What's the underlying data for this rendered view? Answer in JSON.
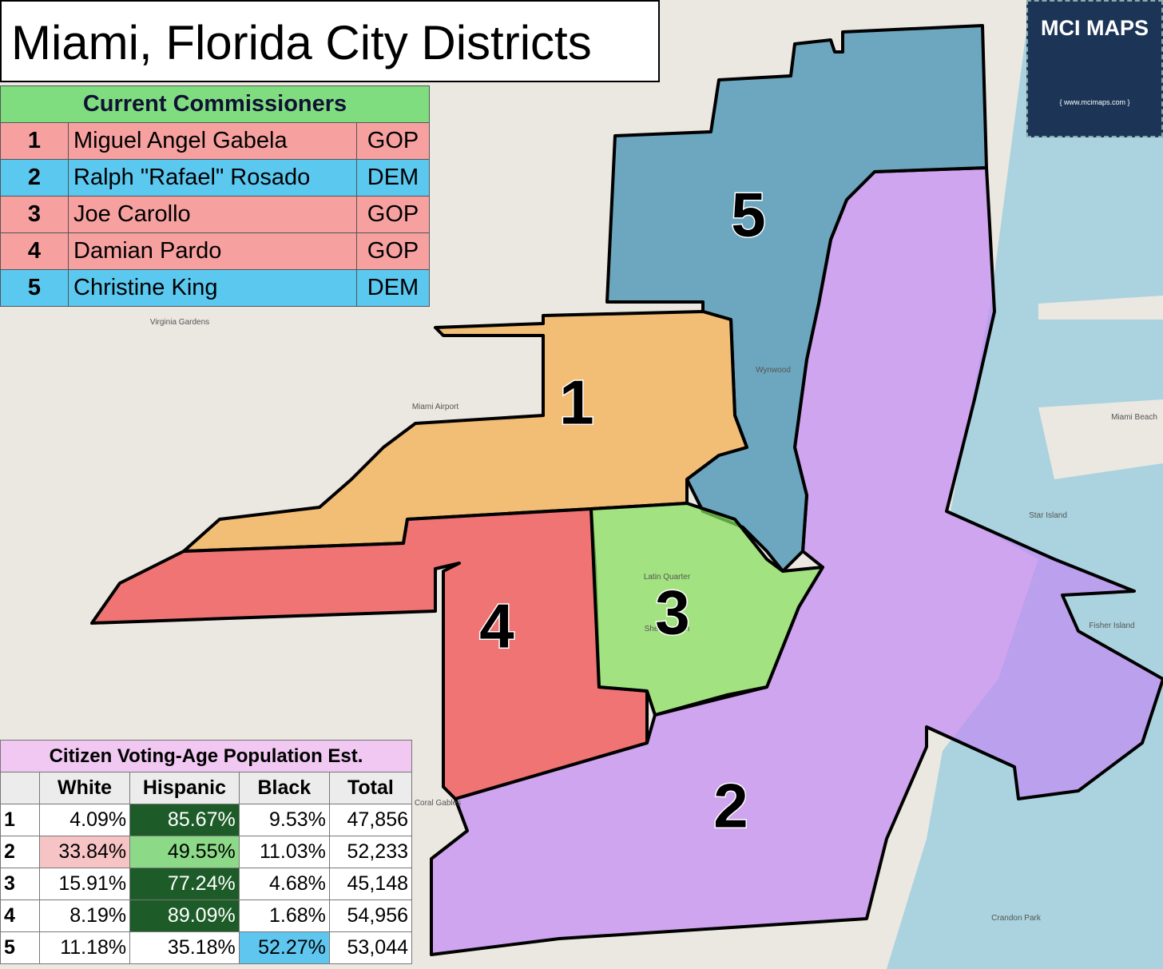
{
  "header": {
    "title": "Miami, Florida City Districts"
  },
  "logo": {
    "title": "MCI MAPS",
    "url": "{ www.mcimaps.com }"
  },
  "commissioners": {
    "title": "Current Commissioners",
    "rows": [
      [
        "1",
        "Miguel Angel Gabela",
        "GOP"
      ],
      [
        "2",
        "Ralph \"Rafael\" Rosado",
        "DEM"
      ],
      [
        "3",
        "Joe Carollo",
        "GOP"
      ],
      [
        "4",
        "Damian Pardo",
        "GOP"
      ],
      [
        "5",
        "Christine King",
        "DEM"
      ]
    ]
  },
  "cvap": {
    "title": "Citizen Voting-Age Population Est.",
    "headers": [
      "White",
      "Hispanic",
      "Black",
      "Total"
    ],
    "rows": [
      [
        "1",
        "4.09%",
        "85.67%",
        "9.53%",
        "47,856"
      ],
      [
        "2",
        "33.84%",
        "49.55%",
        "11.03%",
        "52,233"
      ],
      [
        "3",
        "15.91%",
        "77.24%",
        "4.68%",
        "45,148"
      ],
      [
        "4",
        "8.19%",
        "89.09%",
        "1.68%",
        "54,956"
      ],
      [
        "5",
        "11.18%",
        "35.18%",
        "52.27%",
        "53,044"
      ]
    ]
  },
  "districts": [
    {
      "label": "1"
    },
    {
      "label": "2"
    },
    {
      "label": "3"
    },
    {
      "label": "4"
    },
    {
      "label": "5"
    }
  ],
  "map_labels": [
    "Miami Beach",
    "Coral Gables",
    "Fisher Island",
    "Crandon Park",
    "Virginia Gardens",
    "Miami Airport",
    "Star Island",
    "Wynwood",
    "Latin Quarter",
    "Shenandoah"
  ]
}
